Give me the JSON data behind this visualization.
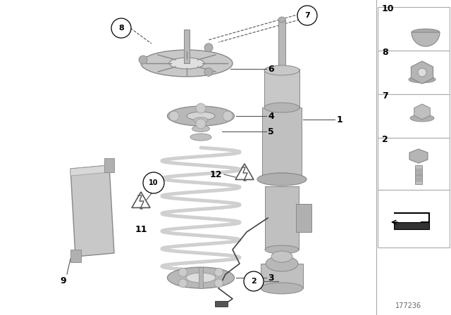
{
  "bg_color": "#ffffff",
  "diagram_number": "177236",
  "line_color": "#555555",
  "part_color": "#c0c0c0",
  "part_edge": "#888888",
  "spring_color": "#e8e8e8",
  "legend_border": "#aaaaaa"
}
